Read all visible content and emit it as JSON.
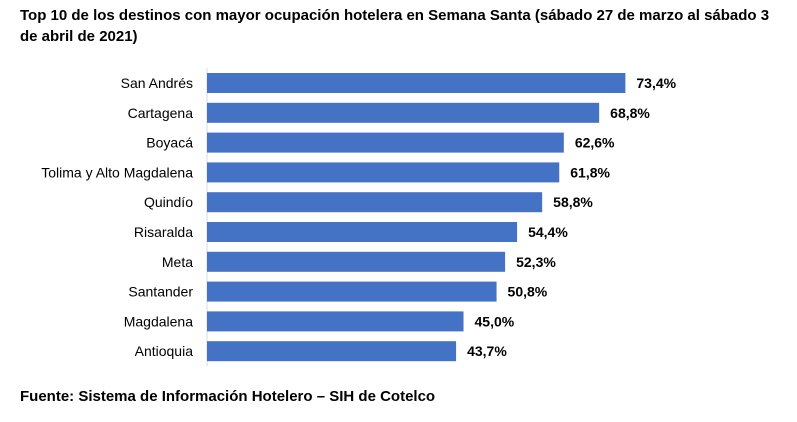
{
  "chart_data": {
    "type": "bar",
    "orientation": "horizontal",
    "title": "Top 10 de los destinos con mayor ocupación hotelera en Semana Santa (sábado 27 de marzo al sábado 3 de abril de 2021)",
    "categories": [
      "San Andrés",
      "Cartagena",
      "Boyacá",
      "Tolima y Alto Magdalena",
      "Quindío",
      "Risaralda",
      "Meta",
      "Santander",
      "Magdalena",
      "Antioquia"
    ],
    "values": [
      73.4,
      68.8,
      62.6,
      61.8,
      58.8,
      54.4,
      52.3,
      50.8,
      45.0,
      43.7
    ],
    "value_labels": [
      "73,4%",
      "68,8%",
      "62,6%",
      "61,8%",
      "58,8%",
      "54,4%",
      "52,3%",
      "50,8%",
      "45,0%",
      "43,7%"
    ],
    "xlim": [
      0,
      100
    ],
    "grid": false,
    "legend": "none",
    "bar_color": "#4472C4"
  },
  "source": "Fuente: Sistema de Información Hotelero – SIH de Cotelco"
}
